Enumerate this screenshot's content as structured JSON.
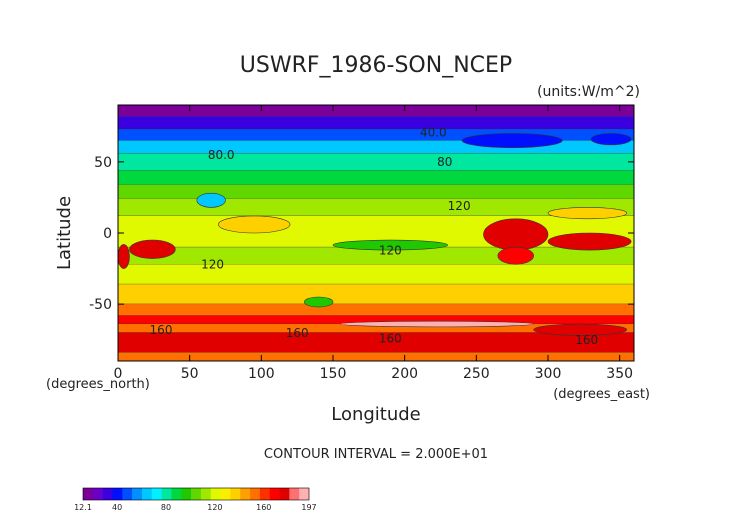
{
  "chart_data": {
    "type": "heatmap",
    "title": "USWRF_1986-SON_NCEP",
    "units_label": "(units:W/m^2)",
    "xlabel": "Longitude",
    "ylabel": "Latitude",
    "x_unit_label": "(degrees_east)",
    "y_unit_label": "(degrees_north)",
    "xlim": [
      0,
      360
    ],
    "ylim": [
      -90,
      90
    ],
    "x_ticks": [
      0,
      50,
      100,
      150,
      200,
      250,
      300,
      350
    ],
    "x_tick_labels": [
      "0",
      "50",
      "100",
      "150",
      "200",
      "250",
      "300",
      "350"
    ],
    "y_ticks": [
      50,
      0,
      -50
    ],
    "y_tick_labels": [
      "50",
      "0",
      "-50"
    ],
    "contour_interval_text": "CONTOUR INTERVAL = 2.000E+01",
    "contour_labels": [
      {
        "text": "40.0",
        "lon": 220,
        "lat": 68
      },
      {
        "text": "80.0",
        "lon": 72,
        "lat": 52
      },
      {
        "text": "80",
        "lon": 228,
        "lat": 47
      },
      {
        "text": "120",
        "lon": 238,
        "lat": 16
      },
      {
        "text": "120",
        "lon": 190,
        "lat": -15
      },
      {
        "text": "120",
        "lon": 66,
        "lat": -25
      },
      {
        "text": "160",
        "lon": 30,
        "lat": -71
      },
      {
        "text": "160",
        "lon": 125,
        "lat": -73
      },
      {
        "text": "160",
        "lon": 190,
        "lat": -77
      },
      {
        "text": "160",
        "lon": 327,
        "lat": -78
      }
    ],
    "colorbar": {
      "min_label": "12.1",
      "max_label": "197",
      "tick_labels": [
        "40",
        "80",
        "120",
        "160"
      ],
      "range": [
        12.1,
        197
      ],
      "colors": [
        "#7b0099",
        "#6a00c8",
        "#3a00e0",
        "#0010ff",
        "#0050ff",
        "#0090ff",
        "#00c8ff",
        "#00f0ff",
        "#00e8a0",
        "#00d840",
        "#20c800",
        "#60d800",
        "#a0e800",
        "#e0f800",
        "#f8f000",
        "#ffd000",
        "#ffa000",
        "#ff7000",
        "#ff3000",
        "#ff0000",
        "#e00000",
        "#ff7070",
        "#ffb0b0"
      ]
    },
    "zonal_bands": [
      {
        "lat_top": 90,
        "lat_bottom": 82,
        "value": 14
      },
      {
        "lat_top": 82,
        "lat_bottom": 73,
        "value": 30
      },
      {
        "lat_top": 73,
        "lat_bottom": 65,
        "value": 45
      },
      {
        "lat_top": 65,
        "lat_bottom": 56,
        "value": 62
      },
      {
        "lat_top": 56,
        "lat_bottom": 44,
        "value": 78
      },
      {
        "lat_top": 44,
        "lat_bottom": 34,
        "value": 92
      },
      {
        "lat_top": 34,
        "lat_bottom": 24,
        "value": 104
      },
      {
        "lat_top": 24,
        "lat_bottom": 12,
        "value": 112
      },
      {
        "lat_top": 12,
        "lat_bottom": -10,
        "value": 118
      },
      {
        "lat_top": -10,
        "lat_bottom": -22,
        "value": 110
      },
      {
        "lat_top": -22,
        "lat_bottom": -36,
        "value": 122
      },
      {
        "lat_top": -36,
        "lat_bottom": -50,
        "value": 140
      },
      {
        "lat_top": -50,
        "lat_bottom": -58,
        "value": 150
      },
      {
        "lat_top": -58,
        "lat_bottom": -64,
        "value": 172
      },
      {
        "lat_top": -64,
        "lat_bottom": -70,
        "value": 150
      },
      {
        "lat_top": -70,
        "lat_bottom": -84,
        "value": 180
      },
      {
        "lat_top": -84,
        "lat_bottom": -90,
        "value": 155
      }
    ],
    "regions": [
      {
        "lon": [
          8,
          40
        ],
        "lat": [
          -5,
          -18
        ],
        "value": 175
      },
      {
        "lon": [
          0,
          8
        ],
        "lat": [
          -8,
          -25
        ],
        "value": 180
      },
      {
        "lon": [
          255,
          300
        ],
        "lat": [
          10,
          -12
        ],
        "value": 175
      },
      {
        "lon": [
          300,
          358
        ],
        "lat": [
          0,
          -12
        ],
        "value": 178
      },
      {
        "lon": [
          265,
          290
        ],
        "lat": [
          -10,
          -22
        ],
        "value": 170
      },
      {
        "lon": [
          70,
          120
        ],
        "lat": [
          12,
          0
        ],
        "value": 140
      },
      {
        "lon": [
          55,
          75
        ],
        "lat": [
          28,
          18
        ],
        "value": 68
      },
      {
        "lon": [
          150,
          230
        ],
        "lat": [
          -5,
          -12
        ],
        "value": 95
      },
      {
        "lon": [
          300,
          355
        ],
        "lat": [
          18,
          10
        ],
        "value": 140
      },
      {
        "lon": [
          240,
          310
        ],
        "lat": [
          70,
          60
        ],
        "value": 38
      },
      {
        "lon": [
          330,
          358
        ],
        "lat": [
          70,
          62
        ],
        "value": 42
      },
      {
        "lon": [
          130,
          150
        ],
        "lat": [
          -45,
          -52
        ],
        "value": 95
      },
      {
        "lon": [
          290,
          355
        ],
        "lat": [
          -64,
          -72
        ],
        "value": 178
      },
      {
        "lon": [
          155,
          290
        ],
        "lat": [
          -62,
          -66
        ],
        "value": 190
      }
    ]
  }
}
